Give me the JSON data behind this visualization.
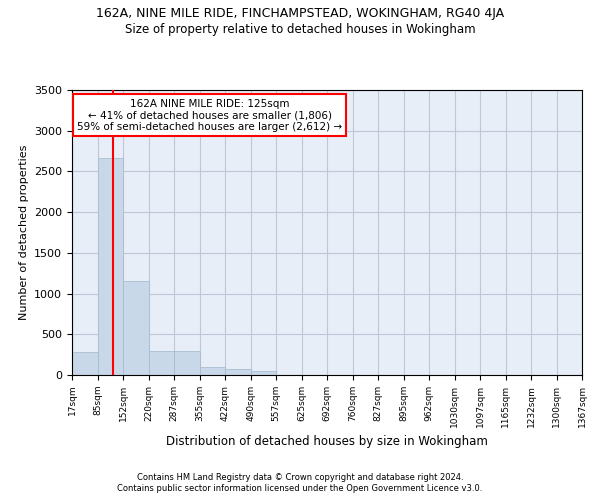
{
  "title1": "162A, NINE MILE RIDE, FINCHAMPSTEAD, WOKINGHAM, RG40 4JA",
  "title2": "Size of property relative to detached houses in Wokingham",
  "xlabel": "Distribution of detached houses by size in Wokingham",
  "ylabel": "Number of detached properties",
  "footer1": "Contains HM Land Registry data © Crown copyright and database right 2024.",
  "footer2": "Contains public sector information licensed under the Open Government Licence v3.0.",
  "bar_color": "#c8d8e8",
  "bar_edgecolor": "#a0b8cc",
  "grid_color": "#c0c8d8",
  "background_color": "#e8eef8",
  "annotation_line1": "162A NINE MILE RIDE: 125sqm",
  "annotation_line2": "← 41% of detached houses are smaller (1,806)",
  "annotation_line3": "59% of semi-detached houses are larger (2,612) →",
  "property_size_sqm": 125,
  "bin_edges": [
    17,
    85,
    152,
    220,
    287,
    355,
    422,
    490,
    557,
    625,
    692,
    760,
    827,
    895,
    962,
    1030,
    1097,
    1165,
    1232,
    1300,
    1367
  ],
  "bin_labels": [
    "17sqm",
    "85sqm",
    "152sqm",
    "220sqm",
    "287sqm",
    "355sqm",
    "422sqm",
    "490sqm",
    "557sqm",
    "625sqm",
    "692sqm",
    "760sqm",
    "827sqm",
    "895sqm",
    "962sqm",
    "1030sqm",
    "1097sqm",
    "1165sqm",
    "1232sqm",
    "1300sqm",
    "1367sqm"
  ],
  "bar_heights": [
    280,
    2660,
    1150,
    290,
    290,
    100,
    70,
    45,
    0,
    0,
    0,
    0,
    0,
    0,
    0,
    0,
    0,
    0,
    0,
    0
  ],
  "ylim": [
    0,
    3500
  ],
  "yticks": [
    0,
    500,
    1000,
    1500,
    2000,
    2500,
    3000,
    3500
  ],
  "red_line_x": 125
}
